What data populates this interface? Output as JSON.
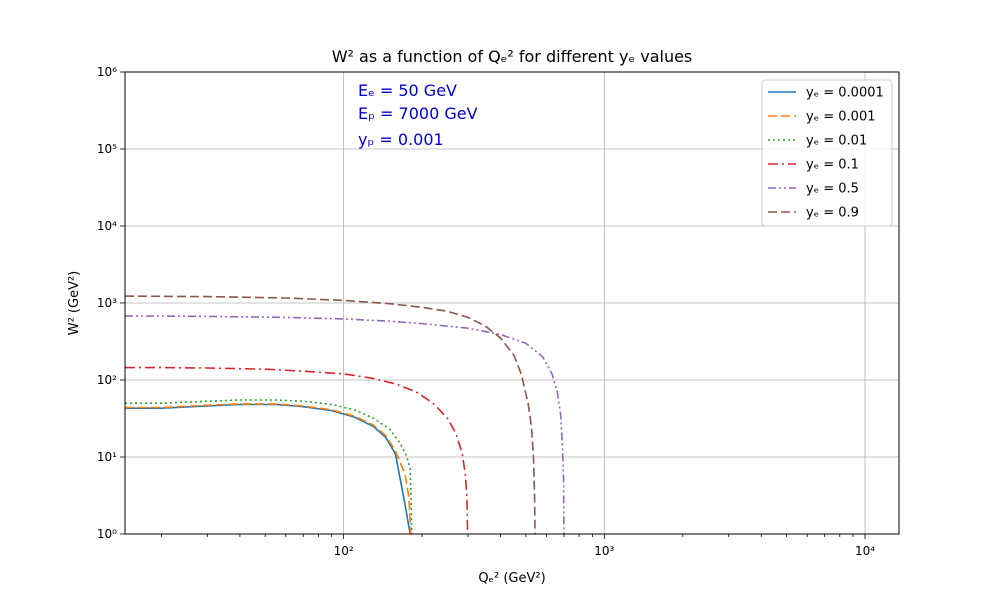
{
  "chart_data": {
    "type": "line",
    "title": "W² as a function of Qₑ² for different yₑ values",
    "xlabel": "Qₑ² (GeV²)",
    "ylabel": "W² (GeV²)",
    "x_scale": "log",
    "y_scale": "log",
    "xlim": [
      14.5,
      13500
    ],
    "ylim": [
      1,
      1000000
    ],
    "grid": true,
    "legend_position": "top-right",
    "xticks": [
      {
        "value": 100,
        "label": "10²"
      },
      {
        "value": 1000,
        "label": "10³"
      },
      {
        "value": 10000,
        "label": "10⁴"
      }
    ],
    "yticks": [
      {
        "value": 1,
        "label": "10⁰"
      },
      {
        "value": 10,
        "label": "10¹"
      },
      {
        "value": 100,
        "label": "10²"
      },
      {
        "value": 1000,
        "label": "10³"
      },
      {
        "value": 10000,
        "label": "10⁴"
      },
      {
        "value": 100000,
        "label": "10⁵"
      },
      {
        "value": 1000000,
        "label": "10⁶"
      }
    ],
    "annotations": [
      "Eₑ = 50 GeV",
      "Eₚ = 7000 GeV",
      "yₚ = 0.001"
    ],
    "series": [
      {
        "name": "yₑ = 0.0001",
        "color": "#1f77b4",
        "dash": "",
        "points": [
          [
            14.5,
            43
          ],
          [
            20,
            43
          ],
          [
            30,
            46
          ],
          [
            40,
            48
          ],
          [
            55,
            48
          ],
          [
            70,
            45
          ],
          [
            90,
            40
          ],
          [
            110,
            33
          ],
          [
            130,
            25
          ],
          [
            145,
            18
          ],
          [
            158,
            11
          ],
          [
            170,
            3
          ],
          [
            180,
            1
          ]
        ]
      },
      {
        "name": "yₑ = 0.001",
        "color": "#ff7f0e",
        "dash": "9,4",
        "points": [
          [
            14.5,
            44
          ],
          [
            20,
            44
          ],
          [
            30,
            47
          ],
          [
            40,
            49
          ],
          [
            55,
            49
          ],
          [
            70,
            46
          ],
          [
            90,
            41
          ],
          [
            110,
            34
          ],
          [
            130,
            26
          ],
          [
            145,
            19
          ],
          [
            158,
            12
          ],
          [
            172,
            6
          ],
          [
            178,
            3
          ],
          [
            181,
            1
          ]
        ]
      },
      {
        "name": "yₑ = 0.01",
        "color": "#2ca02c",
        "dash": "2,3",
        "points": [
          [
            14.5,
            50
          ],
          [
            20,
            50
          ],
          [
            30,
            53
          ],
          [
            40,
            55
          ],
          [
            55,
            55
          ],
          [
            70,
            53
          ],
          [
            90,
            48
          ],
          [
            110,
            41
          ],
          [
            130,
            32
          ],
          [
            150,
            23
          ],
          [
            165,
            15
          ],
          [
            175,
            10
          ],
          [
            180,
            7
          ],
          [
            182,
            2
          ],
          [
            182.5,
            1
          ]
        ]
      },
      {
        "name": "yₑ = 0.1",
        "color": "#d62728",
        "dash": "10,4,2,4",
        "points": [
          [
            14.5,
            145
          ],
          [
            20,
            145
          ],
          [
            30,
            143
          ],
          [
            50,
            138
          ],
          [
            70,
            130
          ],
          [
            100,
            120
          ],
          [
            130,
            105
          ],
          [
            160,
            88
          ],
          [
            190,
            70
          ],
          [
            220,
            50
          ],
          [
            250,
            32
          ],
          [
            270,
            20
          ],
          [
            285,
            11
          ],
          [
            293,
            6
          ],
          [
            297,
            3
          ],
          [
            299,
            1
          ]
        ]
      },
      {
        "name": "yₑ = 0.5",
        "color": "#9467bd",
        "dash": "8,3,2,3,2,3",
        "points": [
          [
            14.5,
            680
          ],
          [
            30,
            670
          ],
          [
            60,
            650
          ],
          [
            100,
            620
          ],
          [
            150,
            580
          ],
          [
            200,
            540
          ],
          [
            300,
            470
          ],
          [
            400,
            390
          ],
          [
            500,
            300
          ],
          [
            580,
            200
          ],
          [
            630,
            120
          ],
          [
            660,
            70
          ],
          [
            680,
            35
          ],
          [
            690,
            15
          ],
          [
            698,
            5
          ],
          [
            700,
            1
          ]
        ]
      },
      {
        "name": "yₑ = 0.9",
        "color": "#8c564b",
        "dash": "9,4",
        "points": [
          [
            14.5,
            1230
          ],
          [
            30,
            1210
          ],
          [
            60,
            1160
          ],
          [
            100,
            1080
          ],
          [
            150,
            980
          ],
          [
            200,
            880
          ],
          [
            250,
            780
          ],
          [
            300,
            650
          ],
          [
            350,
            500
          ],
          [
            400,
            350
          ],
          [
            450,
            210
          ],
          [
            480,
            120
          ],
          [
            510,
            50
          ],
          [
            525,
            25
          ],
          [
            535,
            10
          ],
          [
            540,
            3
          ],
          [
            542,
            1
          ]
        ]
      }
    ]
  }
}
